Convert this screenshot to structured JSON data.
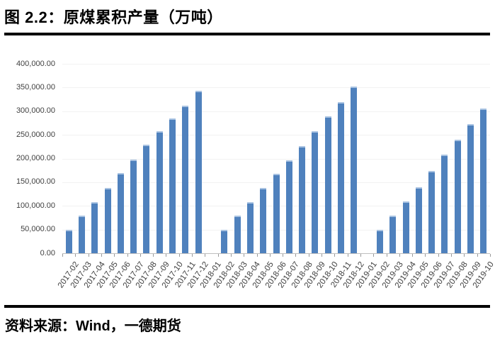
{
  "title": "图 2.2：原煤累积产量（万吨）",
  "source": "资料来源：Wind，一德期货",
  "colors": {
    "bar": "#4f81bd",
    "bar_cap": "#a9c3e2",
    "gridline": "#f2f2f2",
    "axis": "#bfbfbf",
    "tick": "#9a9a9a",
    "label_text": "#3f3f3f",
    "rule": "#000000"
  },
  "chart_data": {
    "type": "bar",
    "title": "图 2.2：原煤累积产量（万吨）",
    "xlabel": "",
    "ylabel": "",
    "ylim": [
      0,
      400000
    ],
    "ytick_step": 50000,
    "ytick_labels": [
      "0.00",
      "50,000.00",
      "100,000.00",
      "150,000.00",
      "200,000.00",
      "250,000.00",
      "300,000.00",
      "350,000.00",
      "400,000.00"
    ],
    "grid": true,
    "legend": false,
    "categories": [
      "2017-02",
      "2017-03",
      "2017-04",
      "2017-05",
      "2017-06",
      "2017-07",
      "2017-08",
      "2017-09",
      "2017-10",
      "2017-11",
      "2017-12",
      "2018-01",
      "2018-02",
      "2018-03",
      "2018-04",
      "2018-05",
      "2018-06",
      "2018-07",
      "2018-08",
      "2018-09",
      "2018-10",
      "2018-11",
      "2018-12",
      "2019-01",
      "2019-02",
      "2019-03",
      "2019-04",
      "2019-05",
      "2019-06",
      "2019-07",
      "2019-08",
      "2019-09",
      "2019-10"
    ],
    "values": [
      50000,
      79000,
      108500,
      138500,
      170000,
      198500,
      229000,
      257500,
      284000,
      311500,
      343500,
      null,
      50000,
      79000,
      108500,
      137500,
      168500,
      196500,
      226500,
      257500,
      289000,
      319000,
      352500,
      null,
      50000,
      79000,
      109000,
      140000,
      174000,
      207500,
      239000,
      272000,
      305000
    ]
  }
}
